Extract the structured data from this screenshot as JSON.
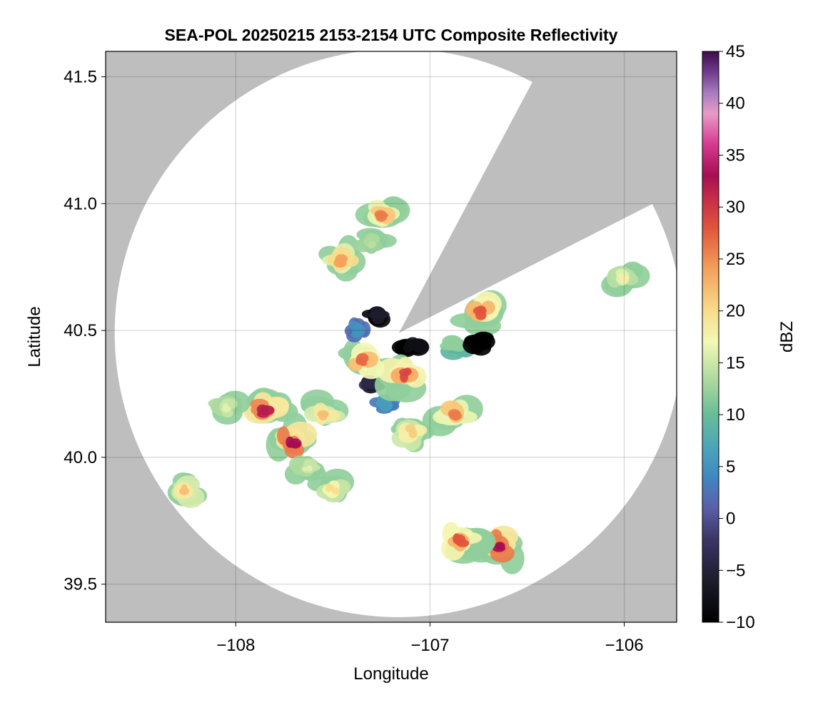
{
  "chart_data": {
    "type": "heatmap",
    "title": "SEA-POL 20250215 2153-2154 UTC Composite Reflectivity",
    "xlabel": "Longitude",
    "ylabel": "Latitude",
    "xlim": [
      -108.67,
      -105.73
    ],
    "ylim": [
      39.35,
      41.6
    ],
    "x_ticks": [
      -108,
      -107,
      -106
    ],
    "x_tick_labels": [
      "−108",
      "−107",
      "−106"
    ],
    "y_ticks": [
      39.5,
      40.0,
      40.5,
      41.0,
      41.5
    ],
    "y_tick_labels": [
      "39.5",
      "40.0",
      "40.5",
      "41.0",
      "41.5"
    ],
    "grid": true,
    "background_color": "#bebebe",
    "radar": {
      "center": [
        -107.16,
        40.49
      ],
      "range_lat_deg": 1.12,
      "blocked_sector_from_north_deg": [
        28,
        63
      ]
    },
    "colorbar": {
      "label": "dBZ",
      "range": [
        -10,
        45
      ],
      "ticks": [
        -10,
        -5,
        0,
        5,
        10,
        15,
        20,
        25,
        30,
        35,
        40,
        45
      ],
      "tick_labels": [
        "−10",
        "−5",
        "0",
        "5",
        "10",
        "15",
        "20",
        "25",
        "30",
        "35",
        "40",
        "45"
      ],
      "colormap": [
        [
          -10,
          "#000000"
        ],
        [
          -6,
          "#1c1c2b"
        ],
        [
          -2,
          "#3b3567"
        ],
        [
          1,
          "#5a5fa8"
        ],
        [
          4,
          "#3f88c2"
        ],
        [
          7,
          "#4ea6b8"
        ],
        [
          10,
          "#67bd99"
        ],
        [
          13,
          "#a5d79c"
        ],
        [
          17,
          "#f3f8b5"
        ],
        [
          20,
          "#f8dc8c"
        ],
        [
          24,
          "#f4a15a"
        ],
        [
          28,
          "#e2543c"
        ],
        [
          31,
          "#c52a49"
        ],
        [
          33,
          "#a60e52"
        ],
        [
          36,
          "#d63890"
        ],
        [
          39,
          "#e99ac6"
        ],
        [
          41,
          "#a77cbf"
        ],
        [
          43,
          "#6f3c8d"
        ],
        [
          45,
          "#3d0a4a"
        ]
      ]
    },
    "echo_cells": [
      {
        "lon": -107.85,
        "lat": 40.18,
        "peak_dbz": 32
      },
      {
        "lon": -107.72,
        "lat": 40.06,
        "peak_dbz": 33
      },
      {
        "lon": -108.05,
        "lat": 40.19,
        "peak_dbz": 16
      },
      {
        "lon": -107.45,
        "lat": 40.77,
        "peak_dbz": 24
      },
      {
        "lon": -107.25,
        "lat": 40.95,
        "peak_dbz": 26
      },
      {
        "lon": -107.3,
        "lat": 40.84,
        "peak_dbz": 14
      },
      {
        "lon": -106.73,
        "lat": 40.57,
        "peak_dbz": 28
      },
      {
        "lon": -106.86,
        "lat": 40.44,
        "peak_dbz": 12
      },
      {
        "lon": -107.27,
        "lat": 40.55,
        "peak_dbz": -6
      },
      {
        "lon": -107.09,
        "lat": 40.44,
        "peak_dbz": -8
      },
      {
        "lon": -107.3,
        "lat": 40.29,
        "peak_dbz": -4
      },
      {
        "lon": -107.23,
        "lat": 40.21,
        "peak_dbz": 6
      },
      {
        "lon": -107.13,
        "lat": 40.33,
        "peak_dbz": 29
      },
      {
        "lon": -107.35,
        "lat": 40.38,
        "peak_dbz": 27
      },
      {
        "lon": -107.55,
        "lat": 40.17,
        "peak_dbz": 22
      },
      {
        "lon": -106.87,
        "lat": 40.17,
        "peak_dbz": 26
      },
      {
        "lon": -107.1,
        "lat": 40.1,
        "peak_dbz": 21
      },
      {
        "lon": -107.5,
        "lat": 39.88,
        "peak_dbz": 20
      },
      {
        "lon": -107.63,
        "lat": 39.95,
        "peak_dbz": 16
      },
      {
        "lon": -106.64,
        "lat": 39.65,
        "peak_dbz": 33
      },
      {
        "lon": -106.85,
        "lat": 39.67,
        "peak_dbz": 28
      },
      {
        "lon": -106.01,
        "lat": 40.71,
        "peak_dbz": 18
      },
      {
        "lon": -108.27,
        "lat": 39.87,
        "peak_dbz": 22
      },
      {
        "lon": -107.38,
        "lat": 40.5,
        "peak_dbz": 5
      },
      {
        "lon": -106.73,
        "lat": 40.46,
        "peak_dbz": -10
      }
    ]
  }
}
